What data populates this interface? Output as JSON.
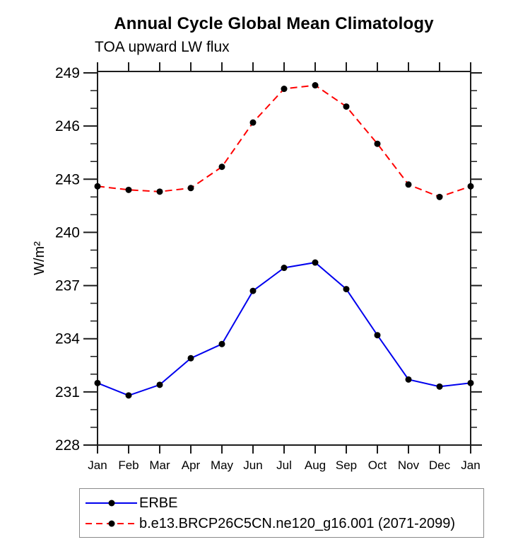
{
  "chart_data": {
    "type": "line",
    "title": "Annual Cycle Global Mean Climatology",
    "subtitle": "TOA upward LW flux",
    "ylabel": "W/m²",
    "xlabel": "",
    "categories": [
      "Jan",
      "Feb",
      "Mar",
      "Apr",
      "May",
      "Jun",
      "Jul",
      "Aug",
      "Sep",
      "Oct",
      "Nov",
      "Dec",
      "Jan"
    ],
    "ylim": [
      228,
      249
    ],
    "ytick_step": 3,
    "yminor_step": 1,
    "ytick_labels": [
      "228",
      "231",
      "234",
      "237",
      "240",
      "243",
      "246",
      "249"
    ],
    "grid": false,
    "legend_position": "bottom-left-box",
    "marker": "filled-black-circle",
    "series": [
      {
        "name": "ERBE",
        "color": "#0000ee",
        "line_style": "solid",
        "marker_color": "#000000",
        "values": [
          231.5,
          230.8,
          231.4,
          232.9,
          233.7,
          236.7,
          238.0,
          238.3,
          236.8,
          234.2,
          231.7,
          231.3,
          231.5
        ]
      },
      {
        "name": "b.e13.BRCP26C5CN.ne120_g16.001 (2071-2099)",
        "color": "#ff0000",
        "line_style": "dashed",
        "marker_color": "#000000",
        "values": [
          242.6,
          242.4,
          242.3,
          242.5,
          243.7,
          246.2,
          248.1,
          248.3,
          247.1,
          245.0,
          242.7,
          242.0,
          242.6
        ]
      }
    ]
  },
  "colors": {
    "axis": "#1c1c1c",
    "text": "#000000",
    "legend_border": "#8a8a8a",
    "background": "#ffffff"
  }
}
